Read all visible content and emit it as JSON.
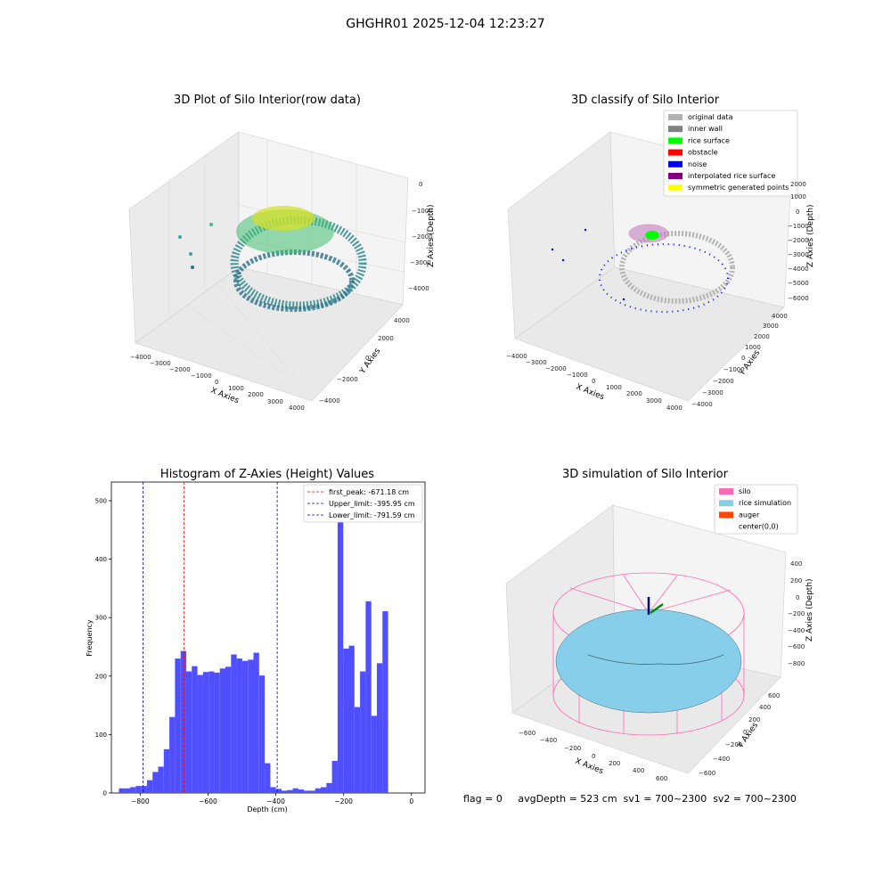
{
  "suptitle": "GHGHR01 2025-12-04 12:23:27",
  "colors": {
    "hist_bar": "#4f4fff",
    "first_peak_line": "#ff0000",
    "limit_line": "#0000cc",
    "pane": "#f2f2f2",
    "grid": "#d9d9d9"
  },
  "panels": {
    "raw": {
      "title": "3D Plot of Silo Interior(row data)",
      "xlabel": "X Axies",
      "ylabel": "Y Axies",
      "zlabel": "Z Axies (Depth)",
      "xticks": [
        "−4000",
        "−3000",
        "−2000",
        "−1000",
        "0",
        "1000",
        "2000",
        "3000",
        "4000"
      ],
      "yticks": [
        "−4000",
        "−2000",
        "0",
        "2000",
        "4000"
      ],
      "zticks": [
        "0",
        "−1000",
        "−2000",
        "−3000",
        "−4000"
      ]
    },
    "classify": {
      "title": "3D classify of Silo Interior",
      "xlabel": "X Axies",
      "ylabel": "Y Axies",
      "zlabel": "Z Axies (Depth)",
      "xticks": [
        "−4000",
        "−3000",
        "−2000",
        "−1000",
        "0",
        "1000",
        "2000",
        "3000",
        "4000"
      ],
      "yticks": [
        "−4000",
        "−3000",
        "−2000",
        "−1000",
        "0",
        "1000",
        "2000",
        "3000",
        "4000"
      ],
      "zticks": [
        "2000",
        "1000",
        "0",
        "−1000",
        "−2000",
        "−3000",
        "−4000",
        "−5000",
        "−6000"
      ],
      "legend": [
        {
          "label": "original data",
          "color": "#b3b3b3"
        },
        {
          "label": "inner wall",
          "color": "#808080"
        },
        {
          "label": "rice surface",
          "color": "#00ff00"
        },
        {
          "label": "obstacle",
          "color": "#ff0000"
        },
        {
          "label": "noise",
          "color": "#0000ff"
        },
        {
          "label": "interpolated rice surface",
          "color": "#800080"
        },
        {
          "label": "symmetric generated points",
          "color": "#ffff00"
        }
      ]
    },
    "simulation": {
      "title": "3D simulation of Silo Interior",
      "xlabel": "X Axies",
      "ylabel": "Y Axies",
      "zlabel": "Z Axies (Depth)",
      "xticks": [
        "−600",
        "−400",
        "−200",
        "0",
        "200",
        "400",
        "600"
      ],
      "yticks": [
        "−600",
        "−400",
        "−200",
        "0",
        "200",
        "400",
        "600"
      ],
      "zticks": [
        "400",
        "200",
        "0",
        "−200",
        "−400",
        "−600",
        "−800"
      ],
      "legend": [
        {
          "label": "silo",
          "color": "#ff69b4"
        },
        {
          "label": "rice simulation",
          "color": "#87ceeb"
        },
        {
          "label": "auger",
          "color": "#ff4500"
        },
        {
          "label": "center(0,0)",
          "color": ""
        }
      ]
    }
  },
  "status_line": "flag = 0     avgDepth = 523 cm  sv1 = 700~2300  sv2 = 700~2300",
  "chart_data": [
    {
      "type": "bar",
      "title": "Histogram of Z-Axies (Height) Values",
      "xlabel": "Depth (cm)",
      "ylabel": "Frequency",
      "xlim": [
        -885,
        40
      ],
      "ylim": [
        0,
        532
      ],
      "xticks": [
        -800,
        -600,
        -400,
        -200,
        0
      ],
      "xtick_labels": [
        "−800",
        "−600",
        "−400",
        "−200",
        "0"
      ],
      "yticks": [
        0,
        100,
        200,
        300,
        400,
        500
      ],
      "bin_width": 16.54,
      "bin_start": -862.8,
      "values": [
        8,
        8,
        10,
        12,
        12,
        22,
        36,
        45,
        75,
        130,
        230,
        243,
        208,
        217,
        202,
        207,
        208,
        206,
        213,
        216,
        237,
        230,
        226,
        228,
        240,
        201,
        51,
        10,
        7,
        4,
        5,
        8,
        6,
        4,
        4,
        8,
        10,
        17,
        55,
        497,
        247,
        252,
        147,
        208,
        328,
        132,
        222,
        311
      ],
      "vlines": [
        {
          "label": "first_peak: -671.18 cm",
          "x": -671.18,
          "color": "#ff0000"
        },
        {
          "label": "Upper_limit: -395.95 cm",
          "x": -395.95,
          "color": "#0000cc"
        },
        {
          "label": "Lower_limit: -791.59 cm",
          "x": -791.59,
          "color": "#0000cc"
        }
      ],
      "legend_position": "top-right",
      "grid": false
    }
  ]
}
